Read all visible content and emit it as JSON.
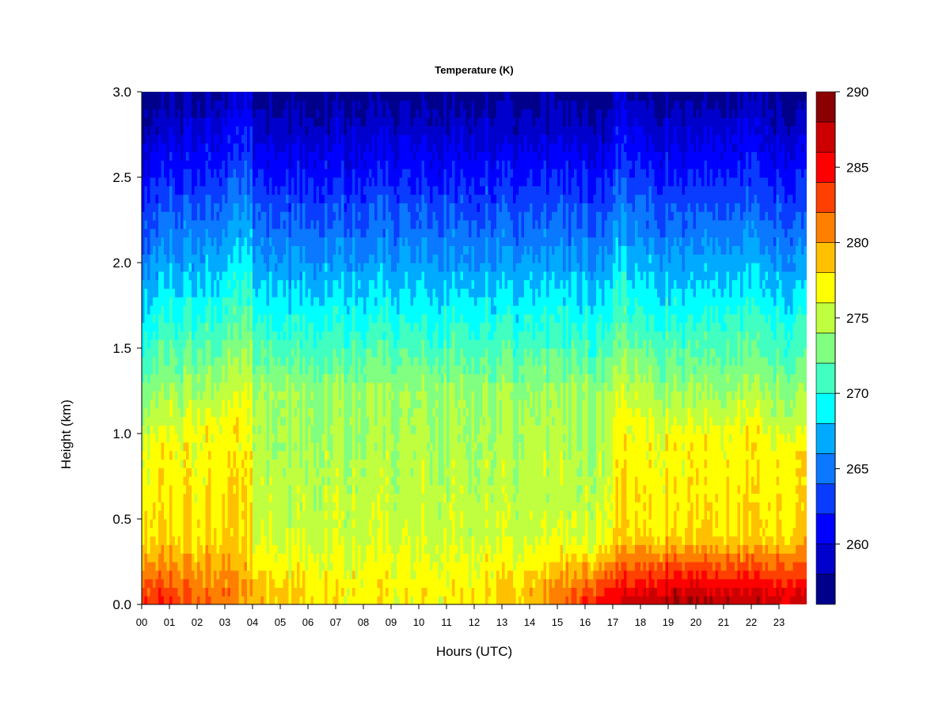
{
  "chart_data": {
    "type": "heatmap",
    "title": "Temperature (K)",
    "xlabel": "Hours (UTC)",
    "ylabel": "Height (km)",
    "x_ticks": [
      "00",
      "01",
      "02",
      "03",
      "04",
      "05",
      "06",
      "07",
      "08",
      "09",
      "10",
      "11",
      "12",
      "13",
      "14",
      "15",
      "16",
      "17",
      "18",
      "19",
      "20",
      "21",
      "22",
      "23"
    ],
    "xlim": [
      0,
      24
    ],
    "y_ticks": [
      "0.0",
      "0.5",
      "1.0",
      "1.5",
      "2.0",
      "2.5",
      "3.0"
    ],
    "ylim": [
      0,
      3.0
    ],
    "colorbar": {
      "ticks": [
        "260",
        "265",
        "270",
        "275",
        "280",
        "285",
        "290"
      ],
      "range": [
        256,
        290
      ],
      "levels": [
        256,
        258.5,
        261,
        263.5,
        266,
        268.5,
        271,
        273.5,
        276,
        278.5,
        281,
        283.5,
        286,
        288.5,
        290
      ],
      "colors": [
        "#00008b",
        "#0000cd",
        "#0000ff",
        "#0a3cff",
        "#0a78ff",
        "#00aaff",
        "#00ffff",
        "#40ffc0",
        "#80ff80",
        "#c0ff40",
        "#ffff00",
        "#ffc000",
        "#ff8000",
        "#ff4000",
        "#ff0000",
        "#cc0000",
        "#8b0000"
      ]
    },
    "grid": false,
    "description_points": {
      "hours": [
        0,
        1,
        2,
        3,
        4,
        5,
        6,
        7,
        8,
        9,
        10,
        11,
        12,
        13,
        14,
        15,
        16,
        17,
        18,
        19,
        20,
        21,
        22,
        23,
        24
      ],
      "surface_temp_K": [
        284,
        283,
        282,
        281,
        279,
        278.5,
        278,
        277.5,
        277,
        277,
        277,
        277,
        277.5,
        278,
        279,
        281,
        283,
        285,
        287,
        288,
        288,
        287.5,
        287,
        286.5,
        286
      ],
      "boundary_top_km": [
        0.9,
        1.0,
        1.05,
        1.1,
        1.3,
        1.3,
        1.3,
        1.3,
        1.3,
        1.3,
        1.3,
        1.3,
        1.3,
        1.3,
        1.3,
        1.3,
        1.3,
        1.2,
        1.1,
        1.0,
        1.0,
        1.05,
        1.05,
        0.95,
        0.9
      ]
    }
  }
}
